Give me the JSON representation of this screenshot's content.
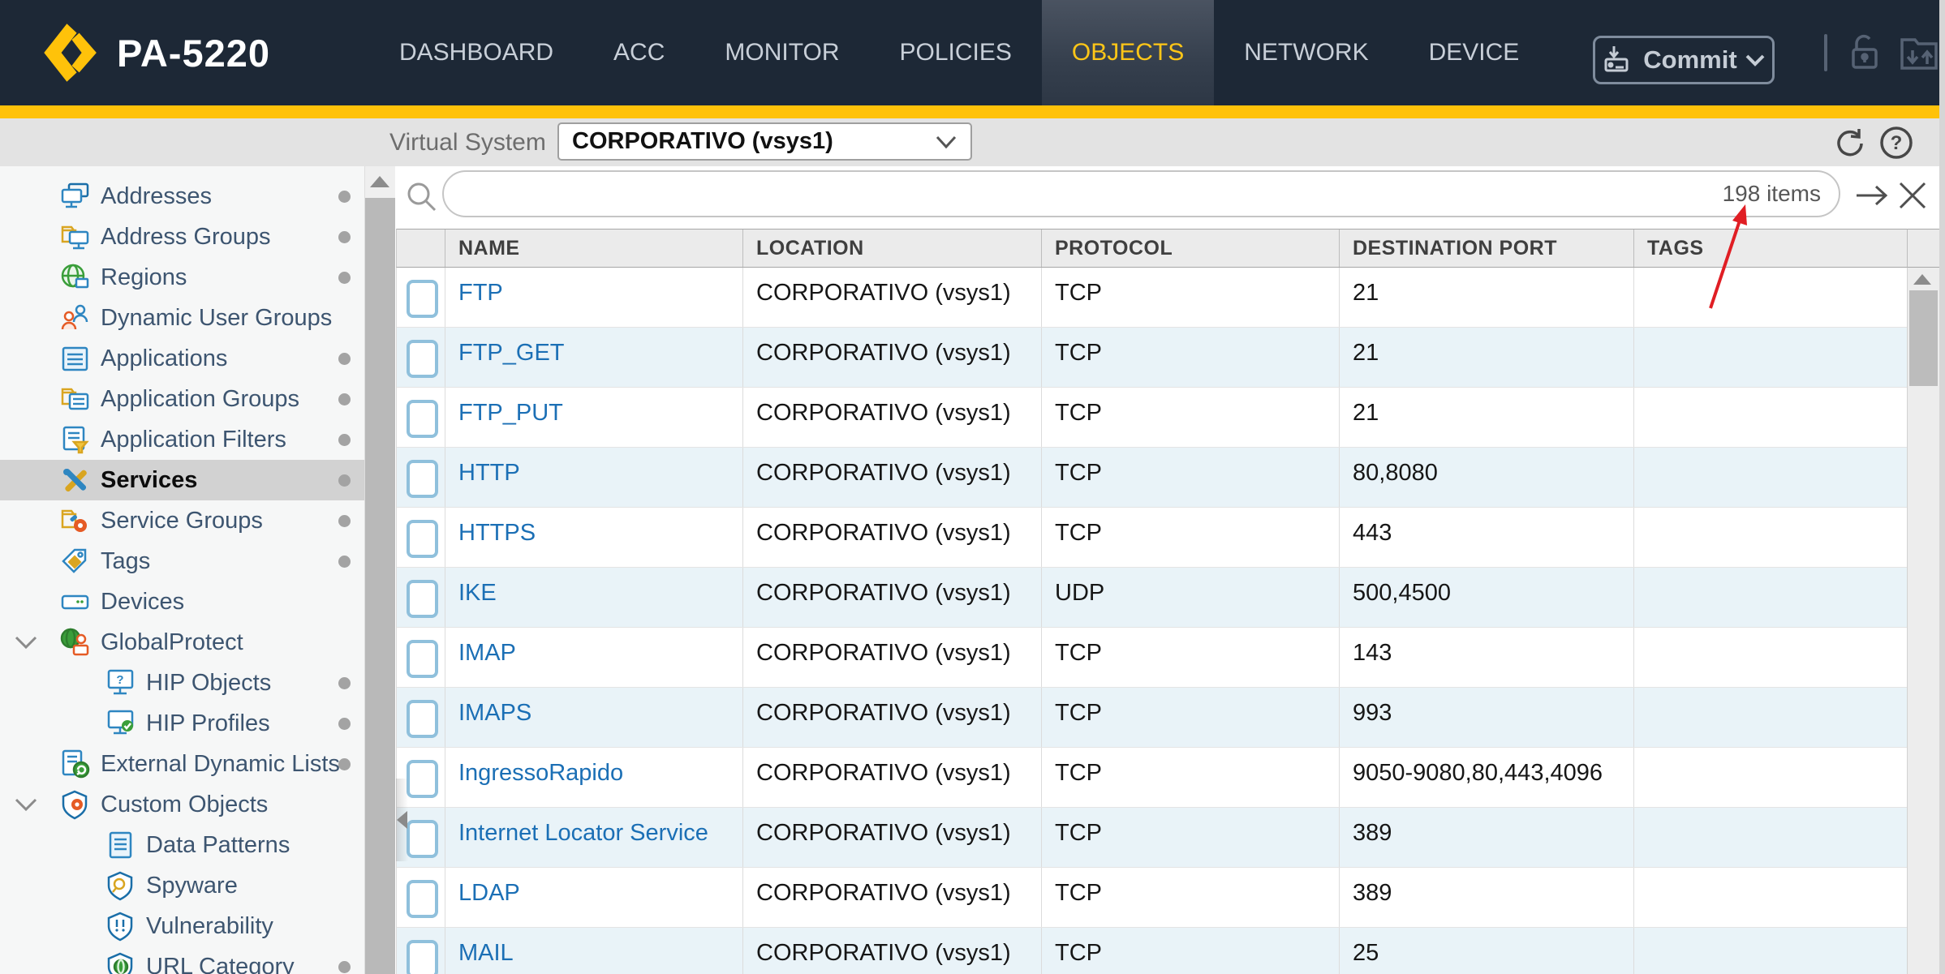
{
  "app": {
    "device_name": "PA-5220"
  },
  "colors": {
    "accent_yellow": "#ffc20a",
    "navbar_bg": "#1d2836",
    "active_tab_text": "#ffc617",
    "link_blue": "#1b6fb5",
    "alt_row_blue": "#e9f3f8",
    "annotation_red": "#e01e24",
    "selected_sidebar_bg": "#d2d2d2"
  },
  "nav": {
    "tabs": [
      {
        "label": "DASHBOARD",
        "active": false
      },
      {
        "label": "ACC",
        "active": false
      },
      {
        "label": "MONITOR",
        "active": false
      },
      {
        "label": "POLICIES",
        "active": false
      },
      {
        "label": "OBJECTS",
        "active": true
      },
      {
        "label": "NETWORK",
        "active": false
      },
      {
        "label": "DEVICE",
        "active": false
      }
    ],
    "commit_label": "Commit",
    "right_icons": [
      "unlock-icon",
      "config-transfer-icon"
    ]
  },
  "vsys_bar": {
    "label": "Virtual System",
    "value": "CORPORATIVO (vsys1)",
    "right_icons": [
      "refresh-icon",
      "help-icon"
    ]
  },
  "sidebar": {
    "items": [
      {
        "label": "Addresses",
        "icon": "addresses",
        "dot": true,
        "indent": 0,
        "selected": false,
        "expandable": false
      },
      {
        "label": "Address Groups",
        "icon": "address-groups",
        "dot": true,
        "indent": 0,
        "selected": false,
        "expandable": false
      },
      {
        "label": "Regions",
        "icon": "regions",
        "dot": true,
        "indent": 0,
        "selected": false,
        "expandable": false
      },
      {
        "label": "Dynamic User Groups",
        "icon": "dynamic-user-groups",
        "dot": false,
        "indent": 0,
        "selected": false,
        "expandable": false
      },
      {
        "label": "Applications",
        "icon": "applications",
        "dot": true,
        "indent": 0,
        "selected": false,
        "expandable": false
      },
      {
        "label": "Application Groups",
        "icon": "application-groups",
        "dot": true,
        "indent": 0,
        "selected": false,
        "expandable": false
      },
      {
        "label": "Application Filters",
        "icon": "application-filters",
        "dot": true,
        "indent": 0,
        "selected": false,
        "expandable": false
      },
      {
        "label": "Services",
        "icon": "services",
        "dot": true,
        "indent": 0,
        "selected": true,
        "expandable": false
      },
      {
        "label": "Service Groups",
        "icon": "service-groups",
        "dot": true,
        "indent": 0,
        "selected": false,
        "expandable": false
      },
      {
        "label": "Tags",
        "icon": "tags",
        "dot": true,
        "indent": 0,
        "selected": false,
        "expandable": false
      },
      {
        "label": "Devices",
        "icon": "devices",
        "dot": false,
        "indent": 0,
        "selected": false,
        "expandable": false
      },
      {
        "label": "GlobalProtect",
        "icon": "globalprotect",
        "dot": false,
        "indent": 0,
        "selected": false,
        "expandable": true
      },
      {
        "label": "HIP Objects",
        "icon": "hip-objects",
        "dot": true,
        "indent": 1,
        "selected": false,
        "expandable": false
      },
      {
        "label": "HIP Profiles",
        "icon": "hip-profiles",
        "dot": true,
        "indent": 1,
        "selected": false,
        "expandable": false
      },
      {
        "label": "External Dynamic Lists",
        "icon": "external-dynamic-lists",
        "dot": true,
        "indent": 0,
        "selected": false,
        "expandable": false
      },
      {
        "label": "Custom Objects",
        "icon": "custom-objects",
        "dot": false,
        "indent": 0,
        "selected": false,
        "expandable": true
      },
      {
        "label": "Data Patterns",
        "icon": "data-patterns",
        "dot": false,
        "indent": 1,
        "selected": false,
        "expandable": false
      },
      {
        "label": "Spyware",
        "icon": "spyware",
        "dot": false,
        "indent": 1,
        "selected": false,
        "expandable": false
      },
      {
        "label": "Vulnerability",
        "icon": "vulnerability",
        "dot": false,
        "indent": 1,
        "selected": false,
        "expandable": false
      },
      {
        "label": "URL Category",
        "icon": "url-category",
        "dot": true,
        "indent": 1,
        "selected": false,
        "expandable": false
      }
    ]
  },
  "search": {
    "placeholder": "",
    "value": "",
    "count_label": "198 items"
  },
  "table": {
    "columns": [
      "",
      "NAME",
      "LOCATION",
      "PROTOCOL",
      "DESTINATION PORT",
      "TAGS"
    ],
    "rows": [
      {
        "name": "FTP",
        "location": "CORPORATIVO (vsys1)",
        "protocol": "TCP",
        "destination_port": "21",
        "tags": ""
      },
      {
        "name": "FTP_GET",
        "location": "CORPORATIVO (vsys1)",
        "protocol": "TCP",
        "destination_port": "21",
        "tags": ""
      },
      {
        "name": "FTP_PUT",
        "location": "CORPORATIVO (vsys1)",
        "protocol": "TCP",
        "destination_port": "21",
        "tags": ""
      },
      {
        "name": "HTTP",
        "location": "CORPORATIVO (vsys1)",
        "protocol": "TCP",
        "destination_port": "80,8080",
        "tags": ""
      },
      {
        "name": "HTTPS",
        "location": "CORPORATIVO (vsys1)",
        "protocol": "TCP",
        "destination_port": "443",
        "tags": ""
      },
      {
        "name": "IKE",
        "location": "CORPORATIVO (vsys1)",
        "protocol": "UDP",
        "destination_port": "500,4500",
        "tags": ""
      },
      {
        "name": "IMAP",
        "location": "CORPORATIVO (vsys1)",
        "protocol": "TCP",
        "destination_port": "143",
        "tags": ""
      },
      {
        "name": "IMAPS",
        "location": "CORPORATIVO (vsys1)",
        "protocol": "TCP",
        "destination_port": "993",
        "tags": ""
      },
      {
        "name": "IngressoRapido",
        "location": "CORPORATIVO (vsys1)",
        "protocol": "TCP",
        "destination_port": "9050-9080,80,443,4096",
        "tags": ""
      },
      {
        "name": "Internet Locator Service",
        "location": "CORPORATIVO (vsys1)",
        "protocol": "TCP",
        "destination_port": "389",
        "tags": ""
      },
      {
        "name": "LDAP",
        "location": "CORPORATIVO (vsys1)",
        "protocol": "TCP",
        "destination_port": "389",
        "tags": ""
      },
      {
        "name": "MAIL",
        "location": "CORPORATIVO (vsys1)",
        "protocol": "TCP",
        "destination_port": "25",
        "tags": ""
      }
    ]
  },
  "annotation": {
    "type": "arrow",
    "points_at": "198 items"
  }
}
